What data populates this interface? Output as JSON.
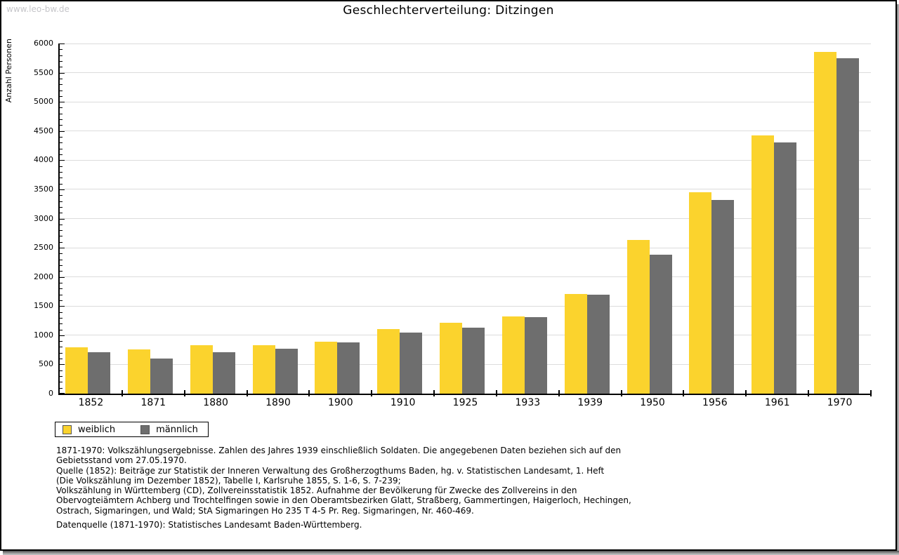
{
  "page": {
    "watermark": "www.leo-bw.de",
    "title": "Geschlechterverteilung: Ditzingen"
  },
  "chart_data": {
    "type": "bar",
    "title": "Geschlechterverteilung: Ditzingen",
    "xlabel": "",
    "ylabel": "Anzahl Personen",
    "ylim": [
      0,
      6000
    ],
    "ytick_step": 500,
    "ytick_minor_step": 100,
    "grid": true,
    "legend_position": "bottom-left",
    "categories": [
      "1852",
      "1871",
      "1880",
      "1890",
      "1900",
      "1910",
      "1925",
      "1933",
      "1939",
      "1950",
      "1956",
      "1961",
      "1970"
    ],
    "series": [
      {
        "name": "weiblich",
        "color": "#fbd32d",
        "values": [
          795,
          760,
          835,
          825,
          890,
          1105,
          1215,
          1320,
          1710,
          2635,
          3450,
          4430,
          5860
        ]
      },
      {
        "name": "männlich",
        "color": "#6e6e6e",
        "values": [
          710,
          600,
          715,
          775,
          875,
          1050,
          1130,
          1305,
          1690,
          2385,
          3320,
          4310,
          5745
        ]
      }
    ]
  },
  "footer": {
    "note_lines": [
      "1871-1970: Volkszählungsergebnisse. Zahlen des Jahres 1939 einschließlich Soldaten. Die angegebenen Daten beziehen sich auf den",
      "Gebietsstand vom 27.05.1970.",
      "Quelle (1852): Beiträge zur Statistik der Inneren Verwaltung des Großherzogthums Baden, hg. v. Statistischen Landesamt, 1. Heft",
      "(Die Volkszählung im Dezember 1852), Tabelle I, Karlsruhe 1855, S. 1-6, S. 7-239;",
      "Volkszählung in Württemberg (CD), Zollvereinsstatistik 1852. Aufnahme der Bevölkerung für Zwecke des Zollvereins in den",
      "Obervogteiämtern Achberg und Trochtelfingen sowie in den Oberamtsbezirken Glatt, Straßberg, Gammertingen, Haigerloch, Hechingen,",
      "Ostrach, Sigmaringen, und Wald; StA Sigmaringen Ho 235 T 4-5 Pr. Reg. Sigmaringen, Nr. 460-469."
    ],
    "datasource": "Datenquelle (1871-1970): Statistisches Landesamt Baden-Württemberg."
  },
  "colors": {
    "bar_female": "#fbd32d",
    "bar_male": "#6e6e6e",
    "gridline": "#dcdcdc",
    "axis": "#000000",
    "watermark": "#c6c6ca",
    "frame_border": "#000000"
  }
}
